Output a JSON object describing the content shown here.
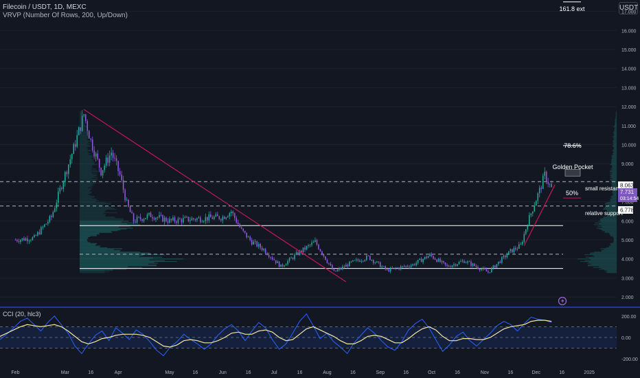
{
  "header": {
    "symbol_line": "Filecoin / USDT, 1D, MEXC",
    "indicator_line": "VRVP (Number Of Rows, 200, Up/Down)",
    "currency": "USDT"
  },
  "annotations": {
    "ext": "161.8 ext",
    "fib786": "78.6%",
    "golden_pocket": "Golden Pocket",
    "fib50": "50%",
    "small_resistance": "small resistance",
    "relative_support": "relative support"
  },
  "price_tags": {
    "upper": "8.063",
    "current_price": "7.731",
    "countdown": "03:14:54",
    "lower": "6.778"
  },
  "cci_label": "CCI (20, hlc3)",
  "colors": {
    "background": "#131722",
    "up_candle": "#26a69a",
    "down_candle": "#8e5ad8",
    "trendline": "#c2185b",
    "level_line": "#ffffff",
    "cci_line": "#2962ff",
    "cci_ma": "#f5e7a3",
    "current_price_tag": "#7e57c2",
    "separator": "#2962ff"
  },
  "chart_data": [
    {
      "type": "candlestick",
      "ylabel": "",
      "ylim": [
        1.5,
        17.6
      ],
      "y_ticks": [
        "17.000",
        "16.000",
        "15.000",
        "14.000",
        "13.000",
        "12.000",
        "11.000",
        "10.000",
        "9.000",
        "8.000",
        "7.000",
        "6.000",
        "5.000",
        "4.000",
        "3.000",
        "2.000"
      ],
      "x_ticks": [
        "Feb",
        "Mar",
        "16",
        "Apr",
        "May",
        "16",
        "Jun",
        "16",
        "Jul",
        "16",
        "Aug",
        "16",
        "Sep",
        "16",
        "Oct",
        "16",
        "Nov",
        "16",
        "Dec",
        "16",
        "2025"
      ],
      "close_path": [
        [
          "2024-02-01",
          5.0
        ],
        [
          "2024-02-12",
          5.1
        ],
        [
          "2024-02-22",
          6.2
        ],
        [
          "2024-02-28",
          7.9
        ],
        [
          "2024-03-06",
          9.8
        ],
        [
          "2024-03-12",
          11.6
        ],
        [
          "2024-03-16",
          10.2
        ],
        [
          "2024-03-22",
          8.6
        ],
        [
          "2024-03-28",
          9.6
        ],
        [
          "2024-04-02",
          8.4
        ],
        [
          "2024-04-06",
          6.9
        ],
        [
          "2024-04-10",
          6.0
        ],
        [
          "2024-04-20",
          6.3
        ],
        [
          "2024-05-01",
          6.0
        ],
        [
          "2024-05-15",
          6.1
        ],
        [
          "2024-06-01",
          6.2
        ],
        [
          "2024-06-06",
          6.5
        ],
        [
          "2024-06-12",
          5.5
        ],
        [
          "2024-06-18",
          4.9
        ],
        [
          "2024-06-25",
          4.5
        ],
        [
          "2024-07-05",
          3.6
        ],
        [
          "2024-07-15",
          4.3
        ],
        [
          "2024-07-25",
          4.9
        ],
        [
          "2024-08-05",
          3.3
        ],
        [
          "2024-08-15",
          3.8
        ],
        [
          "2024-08-25",
          4.1
        ],
        [
          "2024-09-05",
          3.4
        ],
        [
          "2024-09-20",
          3.7
        ],
        [
          "2024-09-30",
          4.2
        ],
        [
          "2024-10-10",
          3.6
        ],
        [
          "2024-10-20",
          3.9
        ],
        [
          "2024-11-03",
          3.3
        ],
        [
          "2024-11-10",
          3.9
        ],
        [
          "2024-11-16",
          4.4
        ],
        [
          "2024-11-22",
          4.7
        ],
        [
          "2024-11-26",
          5.9
        ],
        [
          "2024-11-30",
          6.9
        ],
        [
          "2024-12-03",
          7.6
        ],
        [
          "2024-12-06",
          8.4
        ],
        [
          "2024-12-10",
          7.7
        ]
      ],
      "horizontal_levels": [
        {
          "label": "small resistance",
          "value": 8.063,
          "style": "dashed"
        },
        {
          "label": "relative support",
          "value": 6.778,
          "style": "dashed"
        },
        {
          "label": "",
          "value": 5.75,
          "style": "solid"
        },
        {
          "label": "",
          "value": 4.25,
          "style": "dashed"
        },
        {
          "label": "",
          "value": 3.5,
          "style": "solid"
        }
      ],
      "fib_levels": [
        {
          "label": "161.8 ext",
          "value": 17.5
        },
        {
          "label": "78.6%",
          "value": 9.95
        },
        {
          "label": "Golden Pocket",
          "value": [
            8.35,
            8.7
          ]
        },
        {
          "label": "50%",
          "value": 7.2
        }
      ],
      "trendlines": [
        {
          "from": [
            "2024-03-12",
            11.85
          ],
          "to": [
            "2024-08-12",
            2.8
          ]
        },
        {
          "from": [
            "2024-11-24",
            4.7
          ],
          "to": [
            "2024-12-12",
            7.9
          ]
        }
      ],
      "volume_profile": {
        "rows": 200,
        "mode": "Up/Down"
      }
    },
    {
      "type": "line",
      "title": "CCI (20, hlc3)",
      "ylim": [
        -250,
        250
      ],
      "y_ticks": [
        "200.00",
        "0.00",
        "-200.00"
      ],
      "bands": [
        100,
        -100
      ],
      "series": [
        {
          "name": "CCI",
          "values": [
            -20,
            30,
            90,
            150,
            180,
            120,
            60,
            140,
            200,
            120,
            40,
            -80,
            -150,
            -60,
            20,
            60,
            -30,
            90,
            40,
            -20,
            70,
            30,
            -40,
            -120,
            -170,
            -90,
            -40,
            30,
            -20,
            -60,
            -110,
            -60,
            20,
            80,
            120,
            60,
            -30,
            60,
            140,
            90,
            -20,
            -110,
            -60,
            40,
            150,
            220,
            110,
            -10,
            40,
            -40,
            -90,
            -150,
            -50,
            20,
            90,
            40,
            -30,
            -90,
            -120,
            -40,
            70,
            130,
            170,
            90,
            -20,
            -130,
            -70,
            10,
            50,
            -30,
            -80,
            -20,
            40,
            110,
            150,
            120,
            60,
            130,
            190,
            170,
            160,
            140
          ]
        },
        {
          "values": [
            10,
            40,
            70,
            100,
            120,
            110,
            100,
            110,
            120,
            100,
            60,
            10,
            -40,
            -60,
            -40,
            -10,
            0,
            20,
            30,
            30,
            30,
            20,
            0,
            -40,
            -80,
            -90,
            -70,
            -30,
            -20,
            -30,
            -50,
            -50,
            -30,
            0,
            40,
            50,
            30,
            30,
            60,
            70,
            50,
            0,
            -30,
            -20,
            30,
            80,
            100,
            70,
            40,
            10,
            -30,
            -60,
            -60,
            -30,
            10,
            20,
            10,
            -20,
            -50,
            -50,
            -10,
            40,
            80,
            100,
            70,
            10,
            -30,
            -30,
            -10,
            -10,
            -20,
            -20,
            0,
            40,
            80,
            100,
            110,
            120,
            150,
            160,
            160,
            150
          ]
        }
      ]
    }
  ]
}
